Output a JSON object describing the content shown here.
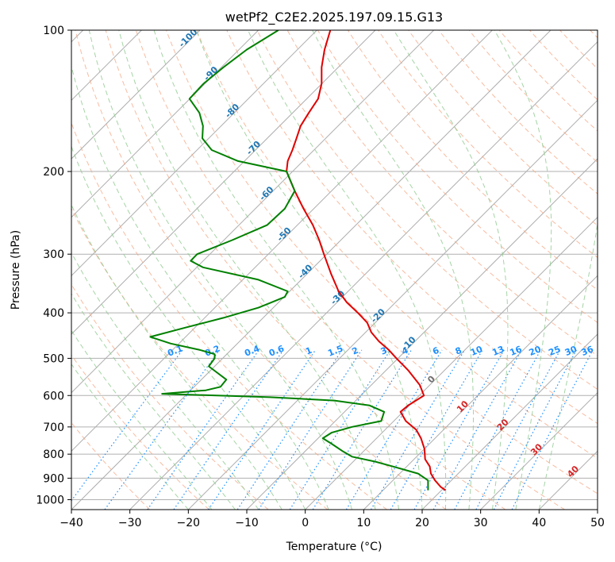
{
  "chart_data": {
    "type": "line",
    "title": "wetPf2_C2E2.2025.197.09.15.G13",
    "xlabel": "Temperature (°C)",
    "ylabel": "Pressure (hPa)",
    "xlim": [
      -40,
      50
    ],
    "ylim": [
      1050,
      100
    ],
    "y_scale": "log",
    "x_ticks": [
      "−40",
      "−30",
      "−20",
      "−10",
      "0",
      "10",
      "20",
      "30",
      "40",
      "50"
    ],
    "y_ticks": [
      "100",
      "200",
      "300",
      "400",
      "500",
      "600",
      "700",
      "800",
      "900",
      "1000"
    ],
    "y_tick_values": [
      100,
      200,
      300,
      400,
      500,
      600,
      700,
      800,
      900,
      1000
    ],
    "grid": true,
    "colors": {
      "temperature": "#e00000",
      "dewpoint": "#008000",
      "isotherm": "#7f7f7f",
      "dry_adiabat": "#f4a582",
      "moist_adiabat": "#8fc98f",
      "mixing_ratio": "#1e90ff",
      "isotherm_label": "#1f77b4",
      "hot_isotherm_label": "#d62728"
    },
    "series": [
      {
        "color_role": "temperature",
        "points": [
          [
            4.3,
            100
          ],
          [
            3.3,
            110
          ],
          [
            2.8,
            120
          ],
          [
            2.8,
            130
          ],
          [
            2.2,
            140
          ],
          [
            0.6,
            150
          ],
          [
            -0.8,
            160
          ],
          [
            -1.5,
            170
          ],
          [
            -2.2,
            180
          ],
          [
            -3.0,
            190
          ],
          [
            -3.2,
            200
          ],
          [
            -1.8,
            220
          ],
          [
            -0.3,
            240
          ],
          [
            1.3,
            260
          ],
          [
            2.4,
            280
          ],
          [
            3.2,
            300
          ],
          [
            4.4,
            330
          ],
          [
            5.7,
            360
          ],
          [
            7.1,
            380
          ],
          [
            9.0,
            400
          ],
          [
            10.6,
            420
          ],
          [
            11.3,
            440
          ],
          [
            12.6,
            460
          ],
          [
            14.3,
            480
          ],
          [
            15.6,
            500
          ],
          [
            17.6,
            530
          ],
          [
            19.6,
            570
          ],
          [
            20.3,
            600
          ],
          [
            17.6,
            630
          ],
          [
            16.3,
            650
          ],
          [
            17.2,
            680
          ],
          [
            19.0,
            710
          ],
          [
            19.8,
            740
          ],
          [
            20.4,
            780
          ],
          [
            20.5,
            820
          ],
          [
            21.3,
            850
          ],
          [
            21.5,
            880
          ],
          [
            22.2,
            910
          ],
          [
            23.2,
            940
          ],
          [
            24.0,
            955
          ]
        ]
      },
      {
        "color_role": "dewpoint",
        "points": [
          [
            -4.6,
            100
          ],
          [
            -10.0,
            110
          ],
          [
            -14.0,
            120
          ],
          [
            -17.4,
            130
          ],
          [
            -19.8,
            140
          ],
          [
            -18.1,
            150
          ],
          [
            -17.5,
            160
          ],
          [
            -17.6,
            170
          ],
          [
            -16.0,
            180
          ],
          [
            -11.5,
            190
          ],
          [
            -3.2,
            200
          ],
          [
            -1.8,
            220
          ],
          [
            -3.5,
            240
          ],
          [
            -6.5,
            260
          ],
          [
            -12.5,
            280
          ],
          [
            -18.5,
            300
          ],
          [
            -19.6,
            310
          ],
          [
            -17.5,
            320
          ],
          [
            -8.0,
            340
          ],
          [
            -3.0,
            360
          ],
          [
            -3.5,
            370
          ],
          [
            -8.0,
            390
          ],
          [
            -14.0,
            410
          ],
          [
            -20.5,
            430
          ],
          [
            -26.5,
            450
          ],
          [
            -23.0,
            465
          ],
          [
            -18.0,
            480
          ],
          [
            -15.5,
            490
          ],
          [
            -15.5,
            500
          ],
          [
            -16.5,
            520
          ],
          [
            -13.5,
            555
          ],
          [
            -14.5,
            575
          ],
          [
            -17.0,
            585
          ],
          [
            -24.5,
            595
          ],
          [
            -6.0,
            605
          ],
          [
            5.0,
            615
          ],
          [
            11.0,
            630
          ],
          [
            13.5,
            650
          ],
          [
            13.0,
            680
          ],
          [
            8.0,
            700
          ],
          [
            4.5,
            720
          ],
          [
            3.0,
            740
          ],
          [
            4.5,
            760
          ],
          [
            6.5,
            790
          ],
          [
            8.0,
            810
          ],
          [
            12.0,
            830
          ],
          [
            15.0,
            850
          ],
          [
            19.3,
            880
          ],
          [
            21.0,
            910
          ],
          [
            21.0,
            940
          ],
          [
            21.0,
            955
          ]
        ]
      }
    ],
    "isotherm_labels_blue": [
      "-100",
      "-90",
      "-80",
      "-70",
      "-60",
      "-50",
      "-40",
      "-30",
      "-20",
      "-10",
      "0"
    ],
    "isotherm_label_values_blue": [
      -100,
      -90,
      -80,
      -70,
      -60,
      -50,
      -40,
      -30,
      -20,
      -10,
      0
    ],
    "isotherm_labels_red": [
      "10",
      "20",
      "30",
      "40"
    ],
    "isotherm_label_values_red": [
      10,
      20,
      30,
      40
    ],
    "mixing_ratio_labels": [
      "0.1",
      "0.2",
      "0.4",
      "0.6",
      "1",
      "1.5",
      "2",
      "3",
      "4",
      "6",
      "8",
      "10",
      "13",
      "16",
      "20",
      "25",
      "30",
      "36"
    ],
    "mixing_ratio_values": [
      0.1,
      0.2,
      0.4,
      0.6,
      1,
      1.5,
      2,
      3,
      4,
      6,
      8,
      10,
      13,
      16,
      20,
      25,
      30,
      36
    ]
  }
}
